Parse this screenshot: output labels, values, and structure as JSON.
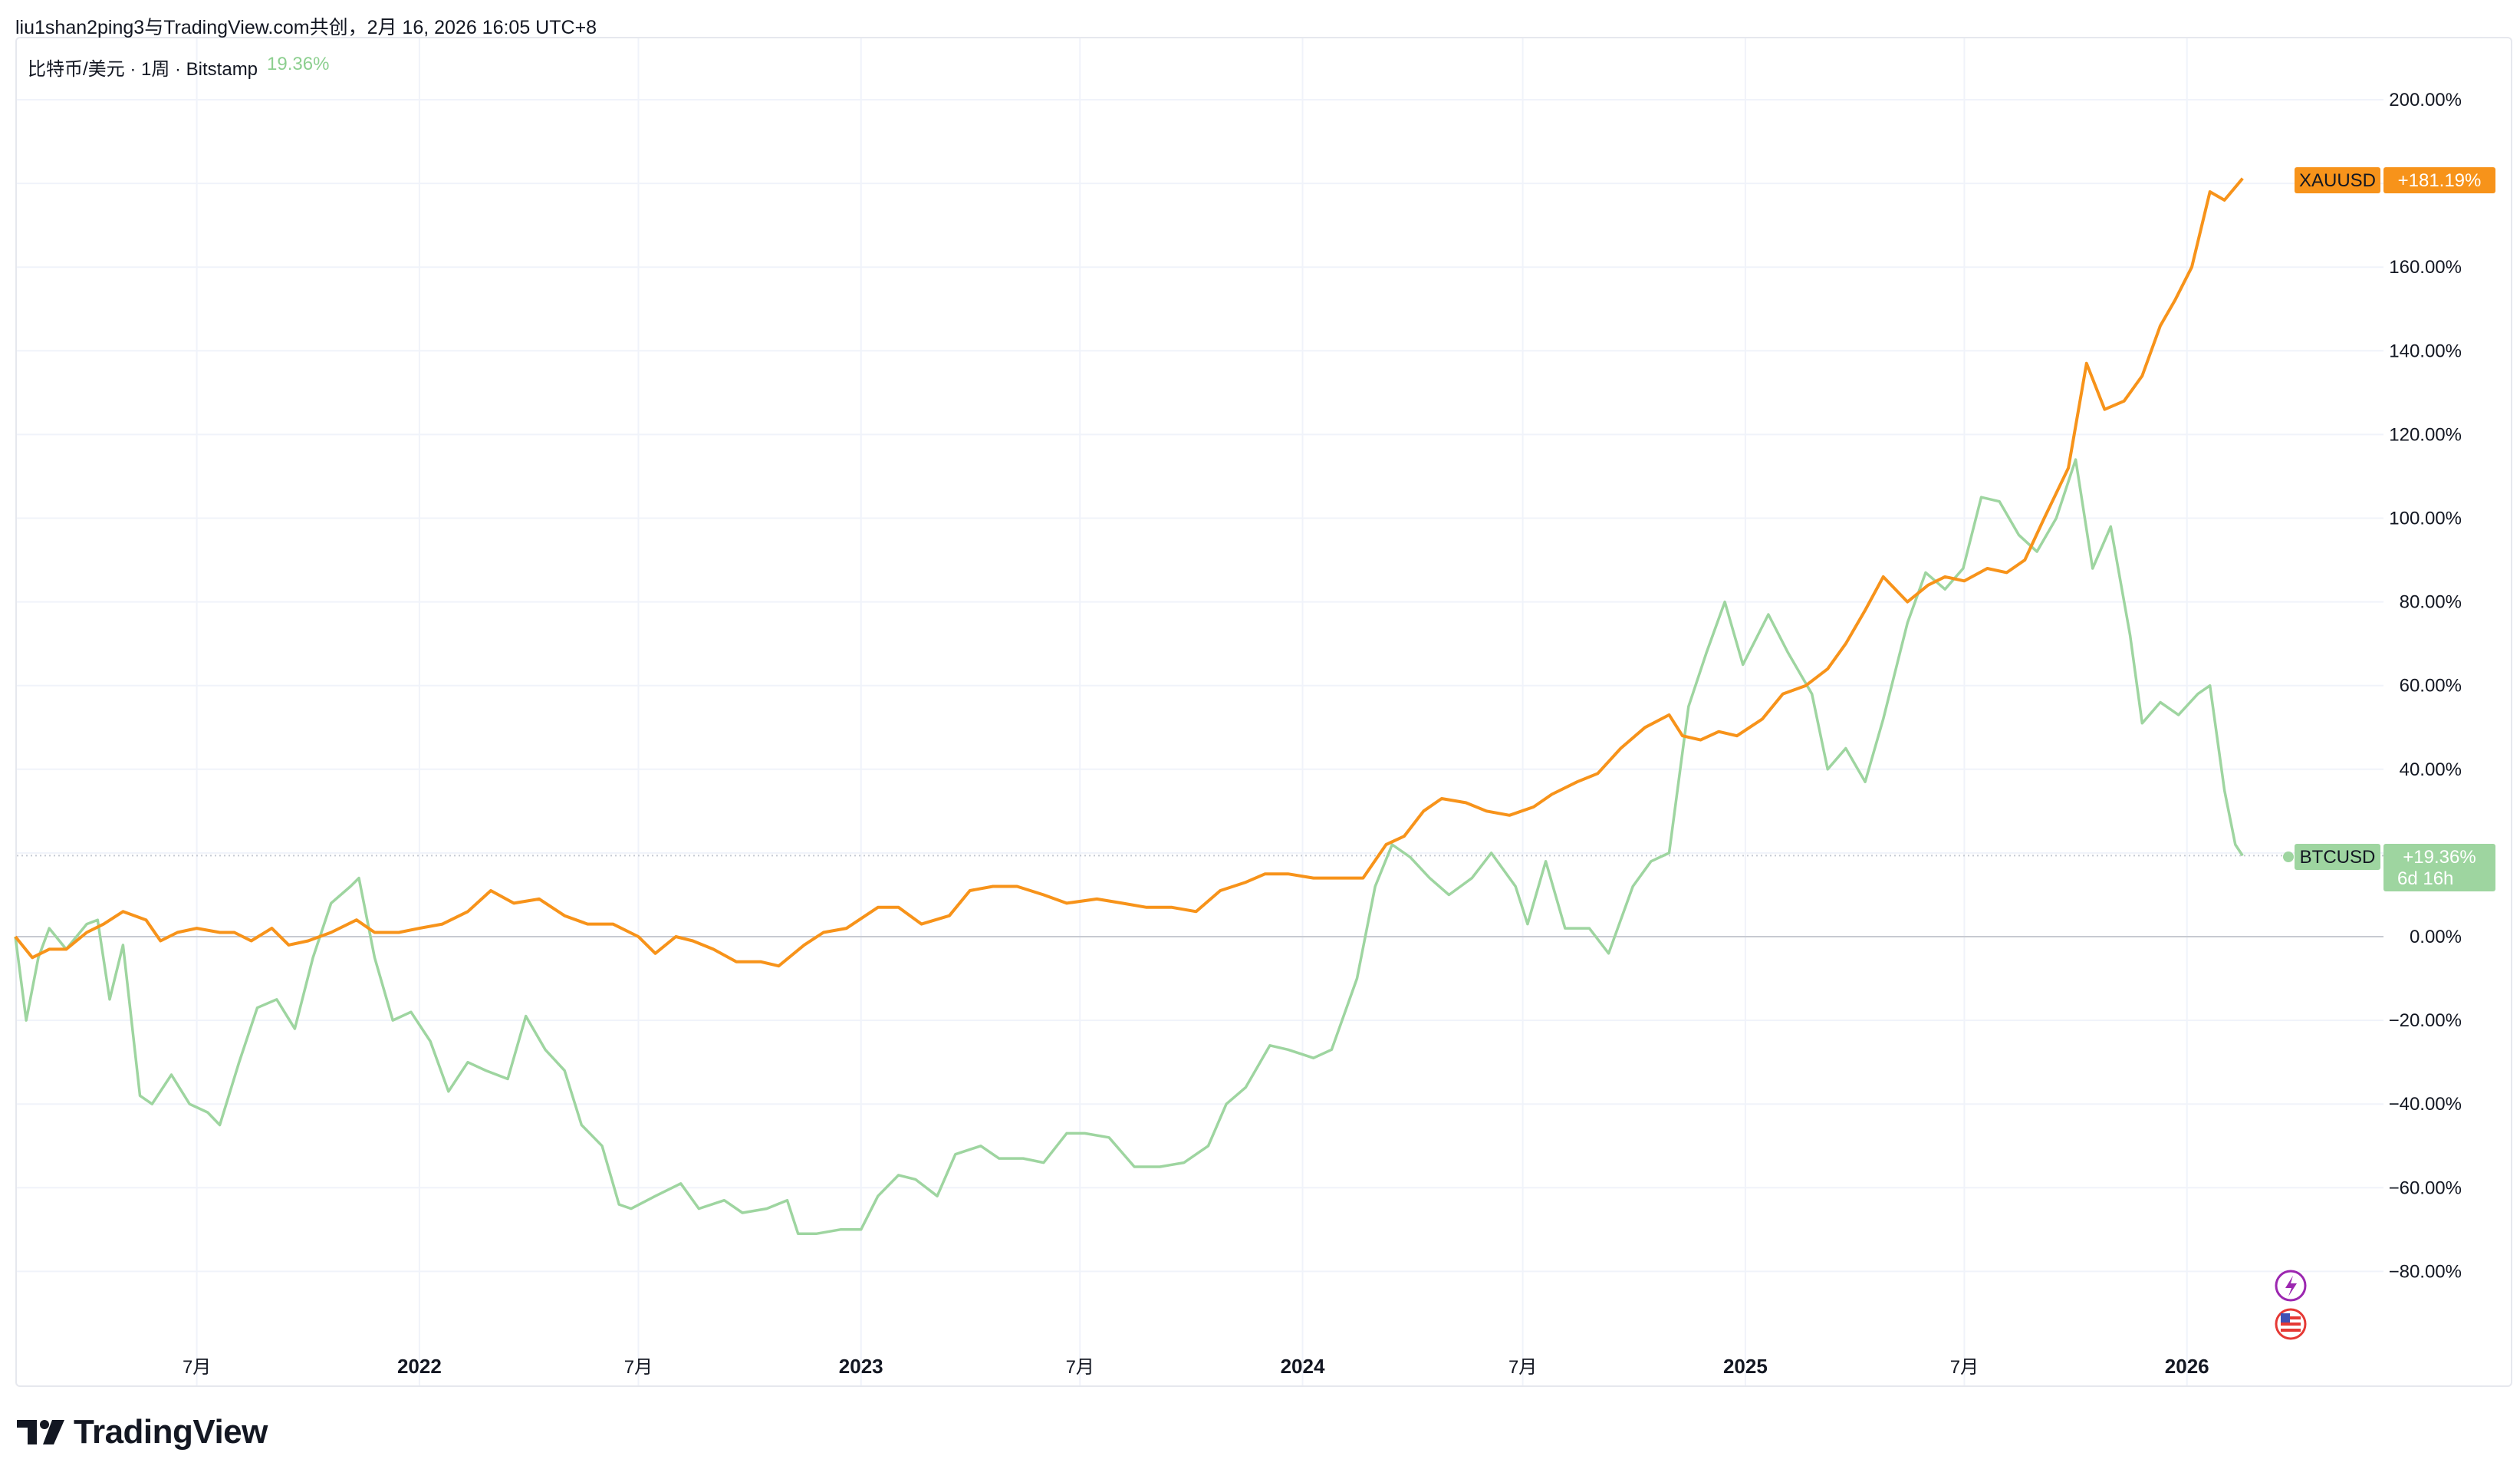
{
  "header": {
    "title": "liu1shan2ping3与TradingView.com共创，2月 16, 2026 16:05 UTC+8"
  },
  "legend": {
    "symbol": "比特币/美元 · 1周 · Bitstamp",
    "change": "19.36%"
  },
  "colors": {
    "gold": "#f7931a",
    "btc": "#9ed5a0",
    "grid": "#f0f3fa",
    "zero": "#c7cad1"
  },
  "badges": {
    "gold_name": "XAUUSD",
    "gold_value": "+181.19%",
    "btc_name": "BTCUSD",
    "btc_value": "+19.36%",
    "btc_countdown": "6d 16h"
  },
  "icons": [
    "lightning-icon",
    "us-flag-icon"
  ],
  "footer": {
    "brand": "TradingView"
  },
  "chart_data": {
    "type": "line",
    "title": "",
    "xlabel": "",
    "ylabel": "",
    "y_unit": "%",
    "ylim": [
      -100,
      200
    ],
    "y_ticks": [
      "200.00%",
      "180.00%",
      "160.00%",
      "140.00%",
      "120.00%",
      "100.00%",
      "80.00%",
      "60.00%",
      "40.00%",
      "20.00%",
      "0.00%",
      "−20.00%",
      "−40.00%",
      "−60.00%",
      "−80.00%"
    ],
    "y_tick_values": [
      200,
      180,
      160,
      140,
      120,
      100,
      80,
      60,
      40,
      20,
      0,
      -20,
      -40,
      -60,
      -80
    ],
    "x_range": [
      "2021-02-01",
      "2026-04-05"
    ],
    "x_ticks": [
      {
        "label": "7月",
        "date": "2021-07-01",
        "bold": false
      },
      {
        "label": "2022",
        "date": "2022-01-01",
        "bold": true
      },
      {
        "label": "7月",
        "date": "2022-07-01",
        "bold": false
      },
      {
        "label": "2023",
        "date": "2023-01-01",
        "bold": true
      },
      {
        "label": "7月",
        "date": "2023-07-01",
        "bold": false
      },
      {
        "label": "2024",
        "date": "2024-01-01",
        "bold": true
      },
      {
        "label": "7月",
        "date": "2024-07-01",
        "bold": false
      },
      {
        "label": "2025",
        "date": "2025-01-01",
        "bold": true
      },
      {
        "label": "7月",
        "date": "2025-07-01",
        "bold": false
      },
      {
        "label": "2026",
        "date": "2026-01-01",
        "bold": true
      }
    ],
    "grid": true,
    "legend_position": "top-left",
    "series": [
      {
        "name": "XAUUSD",
        "color": "#f7931a",
        "points": [
          [
            "2021-02-01",
            0
          ],
          [
            "2021-02-15",
            -5
          ],
          [
            "2021-03-01",
            -3
          ],
          [
            "2021-03-15",
            -3
          ],
          [
            "2021-04-01",
            1
          ],
          [
            "2021-04-15",
            3
          ],
          [
            "2021-05-01",
            6
          ],
          [
            "2021-05-20",
            4
          ],
          [
            "2021-06-01",
            -1
          ],
          [
            "2021-06-15",
            1
          ],
          [
            "2021-07-01",
            2
          ],
          [
            "2021-07-20",
            1
          ],
          [
            "2021-08-01",
            1
          ],
          [
            "2021-08-15",
            -1
          ],
          [
            "2021-09-01",
            2
          ],
          [
            "2021-09-15",
            -2
          ],
          [
            "2021-10-01",
            -1
          ],
          [
            "2021-10-20",
            1
          ],
          [
            "2021-11-10",
            4
          ],
          [
            "2021-11-25",
            1
          ],
          [
            "2021-12-15",
            1
          ],
          [
            "2022-01-01",
            2
          ],
          [
            "2022-01-20",
            3
          ],
          [
            "2022-02-10",
            6
          ],
          [
            "2022-03-01",
            11
          ],
          [
            "2022-03-20",
            8
          ],
          [
            "2022-04-10",
            9
          ],
          [
            "2022-05-01",
            5
          ],
          [
            "2022-05-20",
            3
          ],
          [
            "2022-06-10",
            3
          ],
          [
            "2022-07-01",
            0
          ],
          [
            "2022-07-15",
            -4
          ],
          [
            "2022-08-01",
            0
          ],
          [
            "2022-08-15",
            -1
          ],
          [
            "2022-09-01",
            -3
          ],
          [
            "2022-09-20",
            -6
          ],
          [
            "2022-10-10",
            -6
          ],
          [
            "2022-10-25",
            -7
          ],
          [
            "2022-11-15",
            -2
          ],
          [
            "2022-12-01",
            1
          ],
          [
            "2022-12-20",
            2
          ],
          [
            "2023-01-15",
            7
          ],
          [
            "2023-02-01",
            7
          ],
          [
            "2023-02-20",
            3
          ],
          [
            "2023-03-15",
            5
          ],
          [
            "2023-04-01",
            11
          ],
          [
            "2023-04-20",
            12
          ],
          [
            "2023-05-10",
            12
          ],
          [
            "2023-06-01",
            10
          ],
          [
            "2023-06-20",
            8
          ],
          [
            "2023-07-15",
            9
          ],
          [
            "2023-08-05",
            8
          ],
          [
            "2023-08-25",
            7
          ],
          [
            "2023-09-15",
            7
          ],
          [
            "2023-10-05",
            6
          ],
          [
            "2023-10-25",
            11
          ],
          [
            "2023-11-15",
            13
          ],
          [
            "2023-12-01",
            15
          ],
          [
            "2023-12-20",
            15
          ],
          [
            "2024-01-10",
            14
          ],
          [
            "2024-02-01",
            14
          ],
          [
            "2024-02-20",
            14
          ],
          [
            "2024-03-10",
            22
          ],
          [
            "2024-03-25",
            24
          ],
          [
            "2024-04-10",
            30
          ],
          [
            "2024-04-25",
            33
          ],
          [
            "2024-05-15",
            32
          ],
          [
            "2024-06-01",
            30
          ],
          [
            "2024-06-20",
            29
          ],
          [
            "2024-07-10",
            31
          ],
          [
            "2024-07-25",
            34
          ],
          [
            "2024-08-15",
            37
          ],
          [
            "2024-09-01",
            39
          ],
          [
            "2024-09-20",
            45
          ],
          [
            "2024-10-10",
            50
          ],
          [
            "2024-10-30",
            53
          ],
          [
            "2024-11-10",
            48
          ],
          [
            "2024-11-25",
            47
          ],
          [
            "2024-12-10",
            49
          ],
          [
            "2024-12-25",
            48
          ],
          [
            "2025-01-15",
            52
          ],
          [
            "2025-02-01",
            58
          ],
          [
            "2025-02-20",
            60
          ],
          [
            "2025-03-10",
            64
          ],
          [
            "2025-03-25",
            70
          ],
          [
            "2025-04-10",
            78
          ],
          [
            "2025-04-25",
            86
          ],
          [
            "2025-05-15",
            80
          ],
          [
            "2025-06-01",
            84
          ],
          [
            "2025-06-15",
            86
          ],
          [
            "2025-07-01",
            85
          ],
          [
            "2025-07-20",
            88
          ],
          [
            "2025-08-05",
            87
          ],
          [
            "2025-08-20",
            90
          ],
          [
            "2025-09-05",
            100
          ],
          [
            "2025-09-25",
            112
          ],
          [
            "2025-10-10",
            137
          ],
          [
            "2025-10-25",
            126
          ],
          [
            "2025-11-10",
            128
          ],
          [
            "2025-11-25",
            134
          ],
          [
            "2025-12-10",
            146
          ],
          [
            "2025-12-22",
            152
          ],
          [
            "2026-01-05",
            160
          ],
          [
            "2026-01-20",
            178
          ],
          [
            "2026-02-01",
            176
          ],
          [
            "2026-02-16",
            181.19
          ]
        ]
      },
      {
        "name": "BTCUSD",
        "color": "#9ed5a0",
        "points": [
          [
            "2021-02-01",
            0
          ],
          [
            "2021-02-10",
            -20
          ],
          [
            "2021-02-20",
            -5
          ],
          [
            "2021-03-01",
            2
          ],
          [
            "2021-03-15",
            -3
          ],
          [
            "2021-04-01",
            3
          ],
          [
            "2021-04-10",
            4
          ],
          [
            "2021-04-20",
            -15
          ],
          [
            "2021-05-01",
            -2
          ],
          [
            "2021-05-15",
            -38
          ],
          [
            "2021-05-25",
            -40
          ],
          [
            "2021-06-10",
            -33
          ],
          [
            "2021-06-25",
            -40
          ],
          [
            "2021-07-10",
            -42
          ],
          [
            "2021-07-20",
            -45
          ],
          [
            "2021-08-05",
            -30
          ],
          [
            "2021-08-20",
            -17
          ],
          [
            "2021-09-05",
            -15
          ],
          [
            "2021-09-20",
            -22
          ],
          [
            "2021-10-05",
            -5
          ],
          [
            "2021-10-20",
            8
          ],
          [
            "2021-11-05",
            12
          ],
          [
            "2021-11-12",
            14
          ],
          [
            "2021-11-25",
            -5
          ],
          [
            "2021-12-10",
            -20
          ],
          [
            "2021-12-25",
            -18
          ],
          [
            "2022-01-10",
            -25
          ],
          [
            "2022-01-25",
            -37
          ],
          [
            "2022-02-10",
            -30
          ],
          [
            "2022-02-25",
            -32
          ],
          [
            "2022-03-15",
            -34
          ],
          [
            "2022-03-30",
            -19
          ],
          [
            "2022-04-15",
            -27
          ],
          [
            "2022-05-01",
            -32
          ],
          [
            "2022-05-15",
            -45
          ],
          [
            "2022-06-01",
            -50
          ],
          [
            "2022-06-15",
            -64
          ],
          [
            "2022-06-25",
            -65
          ],
          [
            "2022-07-15",
            -62
          ],
          [
            "2022-08-05",
            -59
          ],
          [
            "2022-08-20",
            -65
          ],
          [
            "2022-09-10",
            -63
          ],
          [
            "2022-09-25",
            -66
          ],
          [
            "2022-10-15",
            -65
          ],
          [
            "2022-11-01",
            -63
          ],
          [
            "2022-11-10",
            -71
          ],
          [
            "2022-11-25",
            -71
          ],
          [
            "2022-12-15",
            -70
          ],
          [
            "2023-01-01",
            -70
          ],
          [
            "2023-01-15",
            -62
          ],
          [
            "2023-02-01",
            -57
          ],
          [
            "2023-02-15",
            -58
          ],
          [
            "2023-03-05",
            -62
          ],
          [
            "2023-03-20",
            -52
          ],
          [
            "2023-04-10",
            -50
          ],
          [
            "2023-04-25",
            -53
          ],
          [
            "2023-05-15",
            -53
          ],
          [
            "2023-06-01",
            -54
          ],
          [
            "2023-06-20",
            -47
          ],
          [
            "2023-07-05",
            -47
          ],
          [
            "2023-07-25",
            -48
          ],
          [
            "2023-08-15",
            -55
          ],
          [
            "2023-09-05",
            -55
          ],
          [
            "2023-09-25",
            -54
          ],
          [
            "2023-10-15",
            -50
          ],
          [
            "2023-10-30",
            -40
          ],
          [
            "2023-11-15",
            -36
          ],
          [
            "2023-12-05",
            -26
          ],
          [
            "2023-12-20",
            -27
          ],
          [
            "2024-01-10",
            -29
          ],
          [
            "2024-01-25",
            -27
          ],
          [
            "2024-02-15",
            -10
          ],
          [
            "2024-03-01",
            12
          ],
          [
            "2024-03-15",
            22
          ],
          [
            "2024-03-30",
            19
          ],
          [
            "2024-04-15",
            14
          ],
          [
            "2024-05-01",
            10
          ],
          [
            "2024-05-20",
            14
          ],
          [
            "2024-06-05",
            20
          ],
          [
            "2024-06-25",
            12
          ],
          [
            "2024-07-05",
            3
          ],
          [
            "2024-07-20",
            18
          ],
          [
            "2024-08-05",
            2
          ],
          [
            "2024-08-25",
            2
          ],
          [
            "2024-09-10",
            -4
          ],
          [
            "2024-09-30",
            12
          ],
          [
            "2024-10-15",
            18
          ],
          [
            "2024-10-30",
            20
          ],
          [
            "2024-11-15",
            55
          ],
          [
            "2024-11-30",
            68
          ],
          [
            "2024-12-15",
            80
          ],
          [
            "2024-12-30",
            65
          ],
          [
            "2025-01-20",
            77
          ],
          [
            "2025-02-05",
            68
          ],
          [
            "2025-02-25",
            58
          ],
          [
            "2025-03-10",
            40
          ],
          [
            "2025-03-25",
            45
          ],
          [
            "2025-04-10",
            37
          ],
          [
            "2025-04-25",
            52
          ],
          [
            "2025-05-15",
            75
          ],
          [
            "2025-05-30",
            87
          ],
          [
            "2025-06-15",
            83
          ],
          [
            "2025-06-30",
            88
          ],
          [
            "2025-07-15",
            105
          ],
          [
            "2025-07-30",
            104
          ],
          [
            "2025-08-15",
            96
          ],
          [
            "2025-08-30",
            92
          ],
          [
            "2025-09-15",
            100
          ],
          [
            "2025-10-01",
            114
          ],
          [
            "2025-10-15",
            88
          ],
          [
            "2025-10-30",
            98
          ],
          [
            "2025-11-15",
            72
          ],
          [
            "2025-11-25",
            51
          ],
          [
            "2025-12-10",
            56
          ],
          [
            "2025-12-25",
            53
          ],
          [
            "2026-01-10",
            58
          ],
          [
            "2026-01-20",
            60
          ],
          [
            "2026-02-01",
            35
          ],
          [
            "2026-02-10",
            22
          ],
          [
            "2026-02-16",
            19.36
          ]
        ]
      }
    ]
  }
}
